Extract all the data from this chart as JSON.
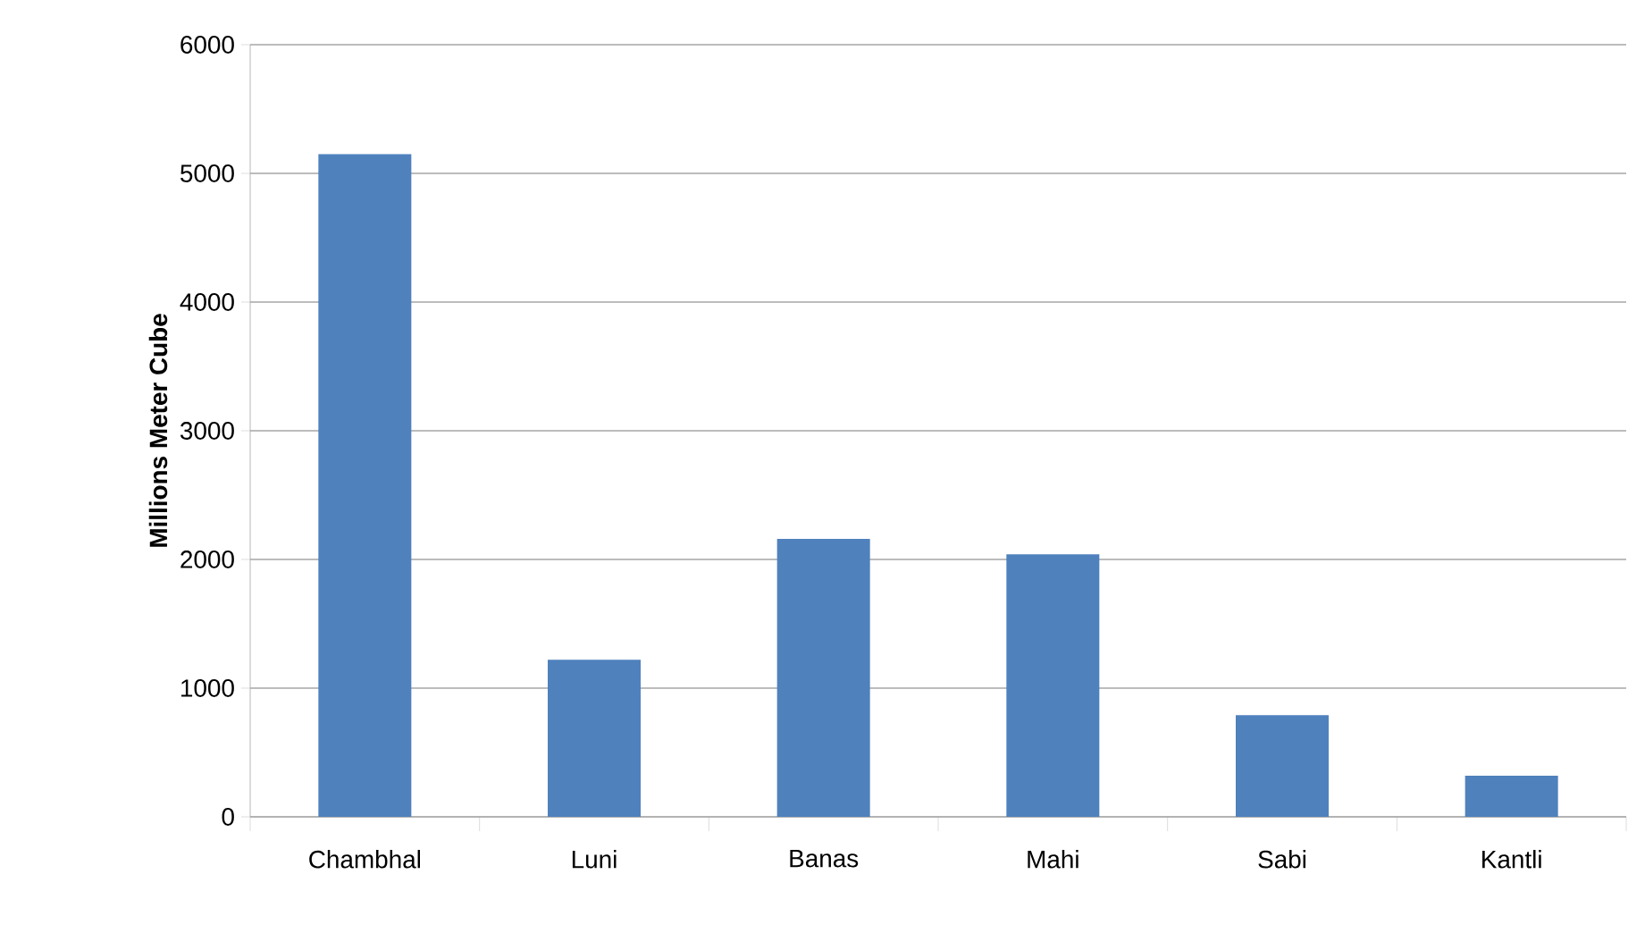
{
  "chart_data": {
    "type": "bar",
    "ylabel": "Millions Meter Cube",
    "categories": [
      "Chambhal",
      "Luni",
      "Banas",
      "Mahi",
      "Sabi",
      "Kantli"
    ],
    "values": [
      5150,
      1220,
      2160,
      2040,
      790,
      320
    ],
    "color": "#4f81bd",
    "ylim": [
      0,
      6000
    ],
    "yticks": [
      0,
      1000,
      2000,
      3000,
      4000,
      5000,
      6000
    ],
    "grid": "y"
  }
}
